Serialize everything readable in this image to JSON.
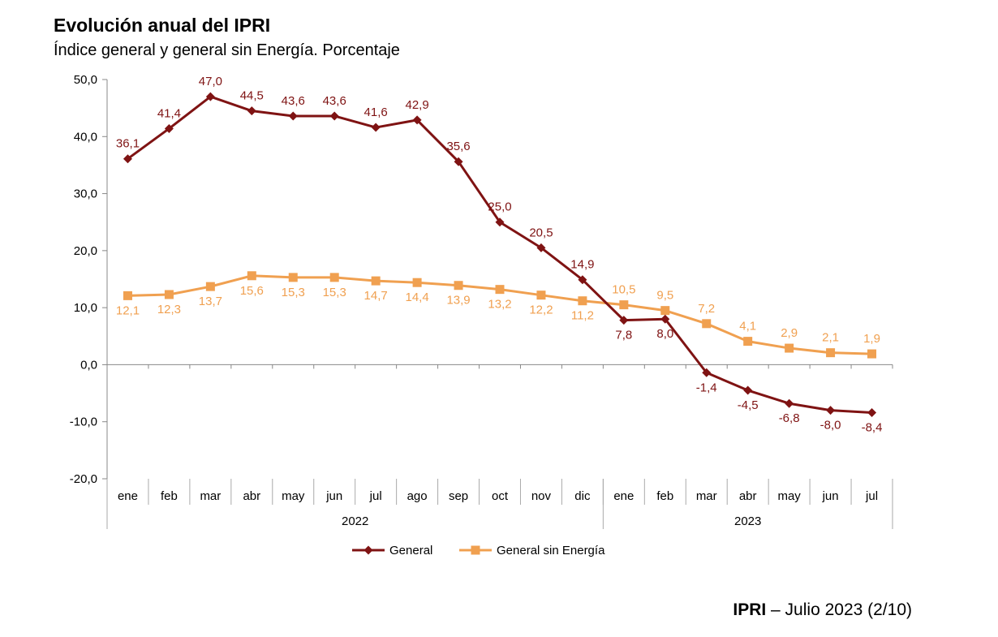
{
  "header": {
    "title": "Evolución anual del IPRI",
    "subtitle": "Índice general y general sin Energía. Porcentaje"
  },
  "footer": {
    "brand": "IPRI",
    "text": "– Julio 2023 (2/10)"
  },
  "chart_data": {
    "type": "line",
    "categories": [
      "ene",
      "feb",
      "mar",
      "abr",
      "may",
      "jun",
      "jul",
      "ago",
      "sep",
      "oct",
      "nov",
      "dic",
      "ene",
      "feb",
      "mar",
      "abr",
      "may",
      "jun",
      "jul"
    ],
    "year_groups": [
      {
        "label": "2022",
        "count": 12
      },
      {
        "label": "2023",
        "count": 7
      }
    ],
    "ylim": [
      -20,
      50
    ],
    "ytick_step": 10,
    "ytick_labels": [
      "-20,0",
      "-10,0",
      "0,0",
      "10,0",
      "20,0",
      "30,0",
      "40,0",
      "50,0"
    ],
    "legend_position": "bottom",
    "series": [
      {
        "name": "General",
        "color": "#7f1313",
        "marker": "diamond",
        "values": [
          36.1,
          41.4,
          47.0,
          44.5,
          43.6,
          43.6,
          41.6,
          42.9,
          35.6,
          25.0,
          20.5,
          14.9,
          7.8,
          8.0,
          -1.4,
          -4.5,
          -6.8,
          -8.0,
          -8.4
        ],
        "labels": [
          "36,1",
          "41,4",
          "47,0",
          "44,5",
          "43,6",
          "43,6",
          "41,6",
          "42,9",
          "35,6",
          "25,0",
          "20,5",
          "14,9",
          "7,8",
          "8,0",
          "-1,4",
          "-4,5",
          "-6,8",
          "-8,0",
          "-8,4"
        ]
      },
      {
        "name": "General sin Energía",
        "color": "#f0a050",
        "marker": "square",
        "values": [
          12.1,
          12.3,
          13.7,
          15.6,
          15.3,
          15.3,
          14.7,
          14.4,
          13.9,
          13.2,
          12.2,
          11.2,
          10.5,
          9.5,
          7.2,
          4.1,
          2.9,
          2.1,
          1.9
        ],
        "labels": [
          "12,1",
          "12,3",
          "13,7",
          "15,6",
          "15,3",
          "15,3",
          "14,7",
          "14,4",
          "13,9",
          "13,2",
          "12,2",
          "11,2",
          "10,5",
          "9,5",
          "7,2",
          "4,1",
          "2,9",
          "2,1",
          "1,9"
        ]
      }
    ]
  }
}
